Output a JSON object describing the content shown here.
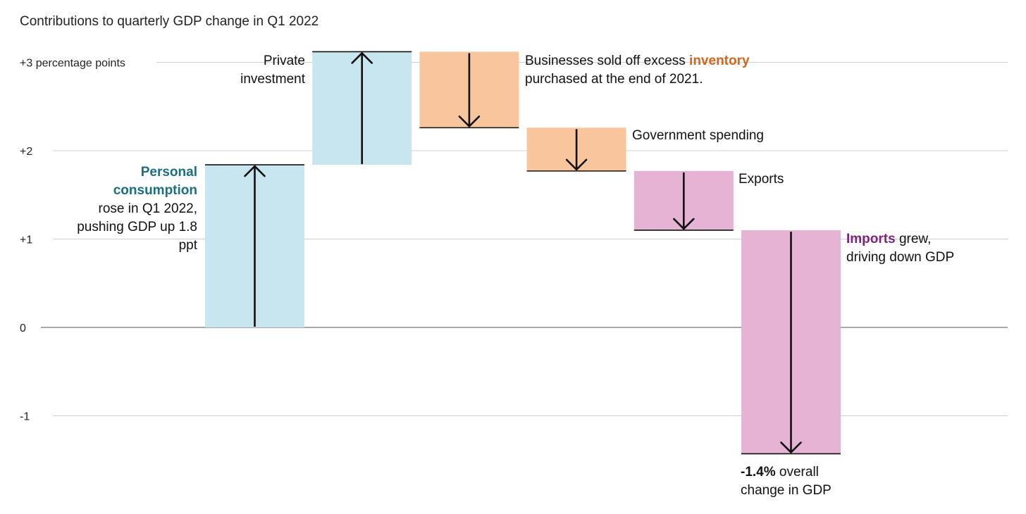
{
  "chart_data": {
    "type": "waterfall",
    "title": "Contributions to quarterly GDP change in Q1 2022",
    "unit": "percentage points",
    "ylim": [
      -1.55,
      3.3
    ],
    "yticks": [
      {
        "value": 3,
        "label": "+3 percentage points"
      },
      {
        "value": 2,
        "label": "+2"
      },
      {
        "value": 1,
        "label": "+1"
      },
      {
        "value": 0,
        "label": "0"
      },
      {
        "value": -1,
        "label": "-1"
      }
    ],
    "grid": true,
    "steps": [
      {
        "name": "Personal consumption",
        "start": 0,
        "end": 1.84,
        "color": "#c8e6ef"
      },
      {
        "name": "Private investment",
        "start": 1.84,
        "end": 3.12,
        "color": "#c8e6ef"
      },
      {
        "name": "inventory",
        "start": 3.12,
        "end": 2.26,
        "color": "#f9c59c"
      },
      {
        "name": "Government spending",
        "start": 2.26,
        "end": 1.77,
        "color": "#f9c59c"
      },
      {
        "name": "Exports",
        "start": 1.77,
        "end": 1.1,
        "color": "#e5b3d4"
      },
      {
        "name": "Imports",
        "start": 1.1,
        "end": -1.43,
        "color": "#e5b3d4"
      }
    ],
    "total": -1.4
  },
  "annotations": {
    "consumption": {
      "highlight": "Personal consumption",
      "text": "rose in Q1 2022, pushing GDP up 1.8 ppt",
      "color": "#1c6e82"
    },
    "investment": {
      "line1": "Private",
      "line2": "investment"
    },
    "inventory": {
      "prefix": "Businesses sold off excess ",
      "highlight": "inventory",
      "suffix": "purchased at the end of 2021.",
      "color": "#d4651c"
    },
    "government": {
      "text": "Government spending"
    },
    "exports": {
      "text": "Exports"
    },
    "imports": {
      "highlight": "Imports",
      "rest": " grew,",
      "line2": "driving down GDP",
      "color": "#7d2280"
    },
    "overall": {
      "value": "-1.4%",
      "rest": " overall",
      "line2": "change in GDP"
    }
  }
}
